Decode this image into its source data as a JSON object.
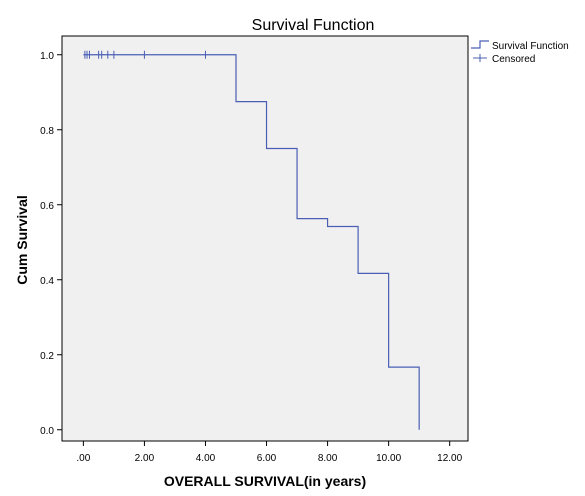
{
  "chart_data": {
    "type": "line",
    "title": "Survival Function",
    "xlabel": "OVERALL SURVIVAL(in years)",
    "ylabel": "Cum Survival",
    "xlim": [
      -0.7,
      12.6
    ],
    "ylim": [
      -0.03,
      1.05
    ],
    "x_ticks": [
      0,
      2,
      4,
      6,
      8,
      10,
      12
    ],
    "x_tick_labels": [
      ".00",
      "2.00",
      "4.00",
      "6.00",
      "8.00",
      "10.00",
      "12.00"
    ],
    "y_ticks": [
      0.0,
      0.2,
      0.4,
      0.6,
      0.8,
      1.0
    ],
    "y_tick_labels": [
      "0.0",
      "0.2",
      "0.4",
      "0.6",
      "0.8",
      "1.0"
    ],
    "grid": false,
    "legend_position": "top-right",
    "series": [
      {
        "name": "Survival Function",
        "kind": "step",
        "color": "#4a5fb4",
        "x": [
          0,
          5,
          6,
          7,
          8,
          9,
          10,
          11
        ],
        "y": [
          1.0,
          0.875,
          0.75,
          0.563,
          0.542,
          0.417,
          0.167,
          0.0
        ]
      },
      {
        "name": "Censored",
        "kind": "censor-marks",
        "color": "#4a5fb4",
        "x": [
          0.05,
          0.12,
          0.2,
          0.5,
          0.6,
          0.8,
          1.0,
          2.0,
          4.0
        ],
        "y": [
          1.0,
          1.0,
          1.0,
          1.0,
          1.0,
          1.0,
          1.0,
          1.0,
          1.0
        ]
      }
    ],
    "colors": {
      "plot_background": "#f0f0f0",
      "line": "#4a5fb4"
    }
  }
}
